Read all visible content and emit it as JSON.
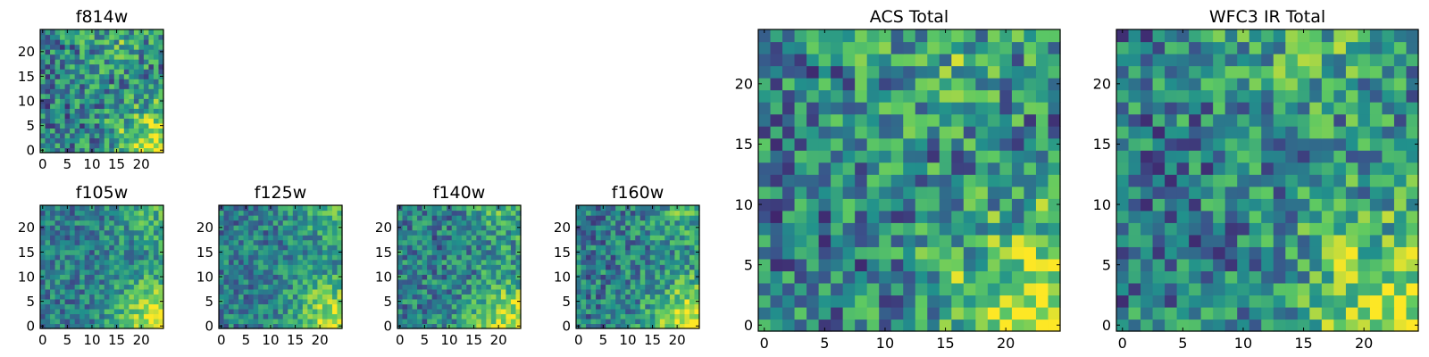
{
  "figure": {
    "description_free": true
  },
  "chart_data": [
    {
      "type": "heatmap",
      "title": "f814w",
      "xticks": [
        0,
        5,
        10,
        15,
        20
      ],
      "yticks": [
        0,
        5,
        10,
        15,
        20
      ],
      "xlim": [
        0,
        24
      ],
      "ylim": [
        0,
        24
      ],
      "grid": false,
      "colormap": "viridis",
      "pattern": {
        "noise": 0.3,
        "hot_corner": "bottom-right",
        "warm_corner": "top-middle",
        "seed": 3
      }
    },
    {
      "type": "heatmap",
      "title": "f105w",
      "xticks": [
        0,
        5,
        10,
        15,
        20
      ],
      "yticks": [
        0,
        5,
        10,
        15,
        20
      ],
      "xlim": [
        0,
        24
      ],
      "ylim": [
        0,
        24
      ],
      "grid": false,
      "colormap": "viridis",
      "pattern": {
        "noise": 0.22,
        "hot_corner": "bottom-right",
        "warm_corner": "top-right",
        "seed": 7
      }
    },
    {
      "type": "heatmap",
      "title": "f125w",
      "xticks": [
        0,
        5,
        10,
        15,
        20
      ],
      "yticks": [
        0,
        5,
        10,
        15,
        20
      ],
      "xlim": [
        0,
        24
      ],
      "ylim": [
        0,
        24
      ],
      "grid": false,
      "colormap": "viridis",
      "pattern": {
        "noise": 0.22,
        "hot_corner": "bottom-right",
        "warm_corner": "top-right",
        "seed": 11
      }
    },
    {
      "type": "heatmap",
      "title": "f140w",
      "xticks": [
        0,
        5,
        10,
        15,
        20
      ],
      "yticks": [
        0,
        5,
        10,
        15,
        20
      ],
      "xlim": [
        0,
        24
      ],
      "ylim": [
        0,
        24
      ],
      "grid": false,
      "colormap": "viridis",
      "pattern": {
        "noise": 0.25,
        "hot_corner": "bottom-right",
        "warm_corner": "top-right",
        "seed": 13
      }
    },
    {
      "type": "heatmap",
      "title": "f160w",
      "xticks": [
        0,
        5,
        10,
        15,
        20
      ],
      "yticks": [
        0,
        5,
        10,
        15,
        20
      ],
      "xlim": [
        0,
        24
      ],
      "ylim": [
        0,
        24
      ],
      "grid": false,
      "colormap": "viridis",
      "pattern": {
        "noise": 0.25,
        "hot_corner": "bottom-right",
        "warm_corner": "top-right",
        "seed": 17
      }
    },
    {
      "type": "heatmap",
      "title": "ACS Total",
      "xticks": [
        0,
        5,
        10,
        15,
        20
      ],
      "yticks": [
        0,
        5,
        10,
        15,
        20
      ],
      "xlim": [
        0,
        24
      ],
      "ylim": [
        0,
        24
      ],
      "grid": false,
      "colormap": "viridis",
      "pattern": {
        "noise": 0.32,
        "hot_corner": "bottom-right",
        "warm_corner": "top-middle",
        "seed": 3
      }
    },
    {
      "type": "heatmap",
      "title": "WFC3 IR Total",
      "xticks": [
        0,
        5,
        10,
        15,
        20
      ],
      "yticks": [
        0,
        5,
        10,
        15,
        20
      ],
      "xlim": [
        0,
        24
      ],
      "ylim": [
        0,
        24
      ],
      "grid": false,
      "colormap": "viridis",
      "pattern": {
        "noise": 0.3,
        "hot_corner": "bottom-right",
        "warm_corner": "top-middle",
        "seed": 23
      }
    }
  ]
}
